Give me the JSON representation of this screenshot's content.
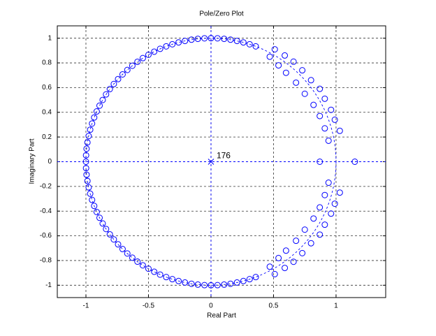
{
  "chart_data": {
    "type": "zplane",
    "title": "Pole/Zero Plot",
    "x_label": "Real Part",
    "y_label": "Imaginary Part",
    "xlim": [
      -1.229,
      1.397
    ],
    "ylim": [
      -1.1,
      1.1
    ],
    "xticks": [
      -1,
      -0.5,
      0,
      0.5,
      1
    ],
    "yticks": [
      -1,
      -0.8,
      -0.6,
      -0.4,
      -0.2,
      0,
      0.2,
      0.4,
      0.6,
      0.8,
      1
    ],
    "grid": true,
    "unit_circle": true,
    "zeros": {
      "color": "#0000ff",
      "x": [
        0.358,
        0.309,
        0.259,
        0.208,
        0.156,
        0.105,
        0.052,
        0,
        -0.052,
        -0.105,
        -0.156,
        -0.208,
        -0.259,
        -0.309,
        -0.358,
        -0.407,
        -0.454,
        -0.5,
        -0.545,
        -0.588,
        -0.629,
        -0.669,
        -0.707,
        -0.743,
        -0.777,
        -0.809,
        -0.839,
        -0.866,
        -0.891,
        -0.914,
        -0.934,
        -0.951,
        -0.966,
        -0.978,
        -0.988,
        -0.995,
        -0.999,
        -1,
        -0.999,
        -0.995,
        -0.988,
        -0.978,
        -0.966,
        -0.951,
        -0.934,
        -0.914,
        -0.891,
        -0.866,
        -0.839,
        -0.809,
        -0.777,
        -0.743,
        -0.707,
        -0.669,
        -0.629,
        -0.588,
        -0.545,
        -0.5,
        -0.454,
        -0.407,
        -0.358,
        -0.309,
        -0.259,
        -0.208,
        -0.156,
        -0.105,
        -0.052,
        0,
        0.052,
        0.105,
        0.156,
        0.208,
        0.259,
        0.309,
        0.358,
        0.51,
        0.59,
        0.66,
        0.73,
        0.8,
        0.87,
        0.91,
        0.96,
        0.99,
        1.03,
        0.51,
        0.59,
        0.66,
        0.73,
        0.8,
        0.87,
        0.91,
        0.96,
        0.99,
        1.03,
        0.47,
        0.54,
        0.6,
        0.68,
        0.75,
        0.82,
        0.87,
        0.91,
        0.94,
        0.47,
        0.54,
        0.6,
        0.68,
        0.75,
        0.82,
        0.87,
        0.91,
        0.94,
        0.87,
        1.15
      ],
      "y": [
        0.934,
        0.951,
        0.966,
        0.978,
        0.988,
        0.995,
        0.999,
        1,
        0.999,
        0.995,
        0.988,
        0.978,
        0.966,
        0.951,
        0.934,
        0.914,
        0.891,
        0.866,
        0.839,
        0.809,
        0.777,
        0.743,
        0.707,
        0.669,
        0.629,
        0.588,
        0.545,
        0.5,
        0.454,
        0.407,
        0.358,
        0.309,
        0.259,
        0.208,
        0.156,
        0.105,
        0.052,
        0,
        -0.052,
        -0.105,
        -0.156,
        -0.208,
        -0.259,
        -0.309,
        -0.358,
        -0.407,
        -0.454,
        -0.5,
        -0.545,
        -0.588,
        -0.629,
        -0.669,
        -0.707,
        -0.743,
        -0.777,
        -0.809,
        -0.839,
        -0.866,
        -0.891,
        -0.914,
        -0.934,
        -0.951,
        -0.966,
        -0.978,
        -0.988,
        -0.995,
        -0.999,
        -1,
        -0.999,
        -0.995,
        -0.988,
        -0.978,
        -0.966,
        -0.951,
        -0.934,
        0.91,
        0.86,
        0.81,
        0.74,
        0.66,
        0.59,
        0.51,
        0.42,
        0.34,
        0.25,
        -0.91,
        -0.86,
        -0.81,
        -0.74,
        -0.66,
        -0.59,
        -0.51,
        -0.42,
        -0.34,
        -0.25,
        0.85,
        0.78,
        0.72,
        0.64,
        0.55,
        0.46,
        0.37,
        0.27,
        0.17,
        -0.85,
        -0.78,
        -0.72,
        -0.64,
        -0.55,
        -0.46,
        -0.37,
        -0.27,
        -0.17,
        0,
        0
      ]
    },
    "poles": {
      "color": "#0000ff",
      "x": [
        0
      ],
      "y": [
        0
      ],
      "multiplicity": 176
    }
  }
}
